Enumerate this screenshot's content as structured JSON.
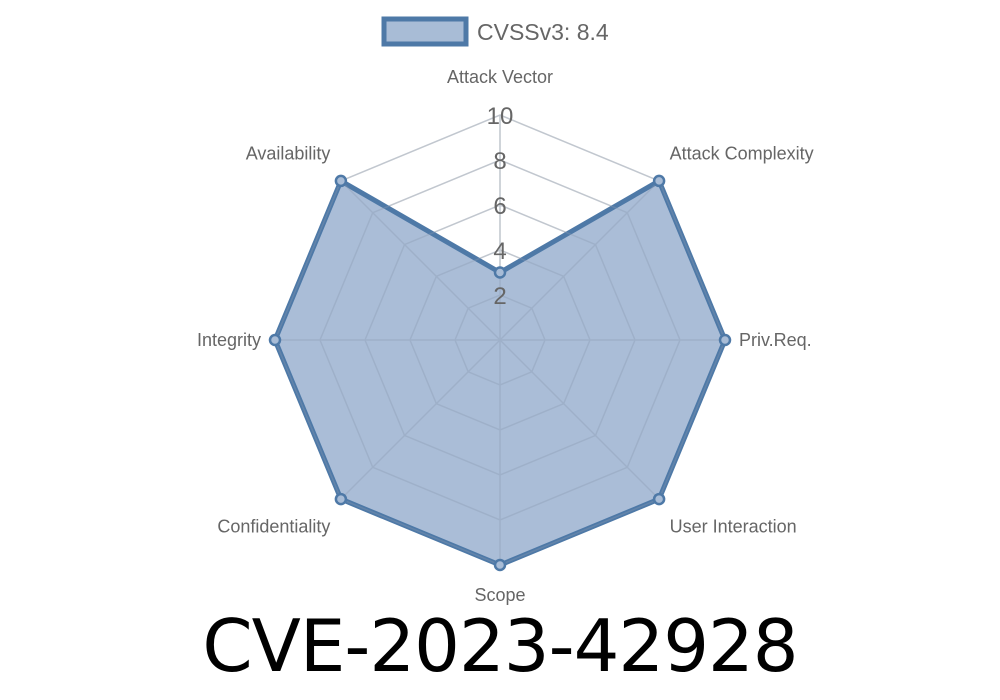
{
  "chart_data": {
    "type": "radar",
    "categories": [
      "Attack Vector",
      "Attack Complexity",
      "Priv.Req.",
      "User Interaction",
      "Scope",
      "Confidentiality",
      "Integrity",
      "Availability"
    ],
    "series": [
      {
        "name": "CVSSv3: 8.4",
        "values": [
          3,
          10,
          10,
          10,
          10,
          10,
          10,
          10
        ]
      }
    ],
    "rlim": [
      0,
      10
    ],
    "ticks": [
      "2",
      "4",
      "6",
      "8",
      "10"
    ],
    "grid": true,
    "legend": "top",
    "colors": {
      "line": "#4e79a7",
      "fill": "#a8bcd6",
      "grid": "#e0e0e0"
    }
  },
  "title": "CVE-2023-42928"
}
